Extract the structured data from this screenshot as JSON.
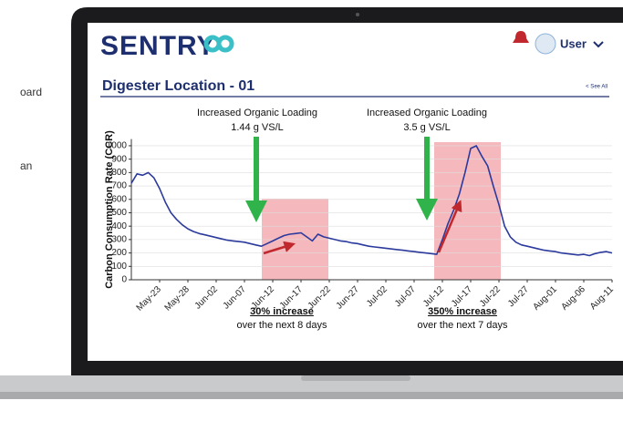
{
  "side_text": [
    "oard",
    "an"
  ],
  "header": {
    "logo": "SENTRY",
    "user": "User",
    "section_title": "Digester Location - 01",
    "see_all": "< See All"
  },
  "chart_data": {
    "type": "line",
    "y_label": "Carbon Consumption Rate (CCR)",
    "color": "#2b3a9c",
    "categories": [
      null,
      null,
      null,
      null,
      null,
      "May-23",
      null,
      null,
      null,
      null,
      "May-28",
      null,
      null,
      null,
      null,
      "Jun-02",
      null,
      null,
      null,
      null,
      "Jun-07",
      null,
      null,
      null,
      null,
      "Jun-12",
      null,
      null,
      null,
      null,
      "Jun-17",
      null,
      null,
      null,
      null,
      "Jun-22",
      null,
      null,
      null,
      null,
      "Jun-27",
      null,
      null,
      null,
      null,
      "Jul-02",
      null,
      null,
      null,
      null,
      "Jul-07",
      null,
      null,
      null,
      null,
      "Jul-12",
      null,
      null,
      null,
      null,
      "Jul-17",
      null,
      null,
      null,
      null,
      "Jul-22",
      null,
      null,
      null,
      null,
      "Jul-27",
      null,
      null,
      null,
      null,
      "Aug-01",
      null,
      null,
      null,
      null,
      "Aug-06",
      null,
      null,
      null,
      null,
      "Aug-11"
    ],
    "values": [
      720,
      790,
      780,
      800,
      760,
      680,
      580,
      500,
      450,
      410,
      380,
      360,
      345,
      335,
      325,
      315,
      305,
      295,
      290,
      285,
      280,
      270,
      260,
      250,
      270,
      290,
      310,
      330,
      340,
      345,
      350,
      320,
      290,
      340,
      320,
      310,
      300,
      290,
      285,
      275,
      270,
      260,
      250,
      245,
      240,
      235,
      230,
      225,
      220,
      215,
      210,
      205,
      200,
      195,
      190,
      300,
      420,
      520,
      640,
      800,
      980,
      1000,
      920,
      850,
      700,
      560,
      400,
      320,
      280,
      260,
      250,
      240,
      230,
      220,
      215,
      210,
      200,
      195,
      190,
      185,
      190,
      180,
      195,
      205,
      210,
      200
    ],
    "ylim": [
      0,
      1050
    ],
    "yticks": [
      0,
      100,
      200,
      300,
      400,
      500,
      600,
      700,
      800,
      900,
      1000
    ],
    "grid": true,
    "annotations": [
      {
        "title": "Increased Organic Loading",
        "detail": "1.44 g VS/L"
      },
      {
        "title": "Increased Organic Loading",
        "detail": "3.5 g VS/L"
      }
    ],
    "notes": [
      {
        "headline": "30% increase",
        "detail": "over the next 8 days"
      },
      {
        "headline": "350% increase",
        "detail": "over the next 7 days"
      }
    ]
  }
}
